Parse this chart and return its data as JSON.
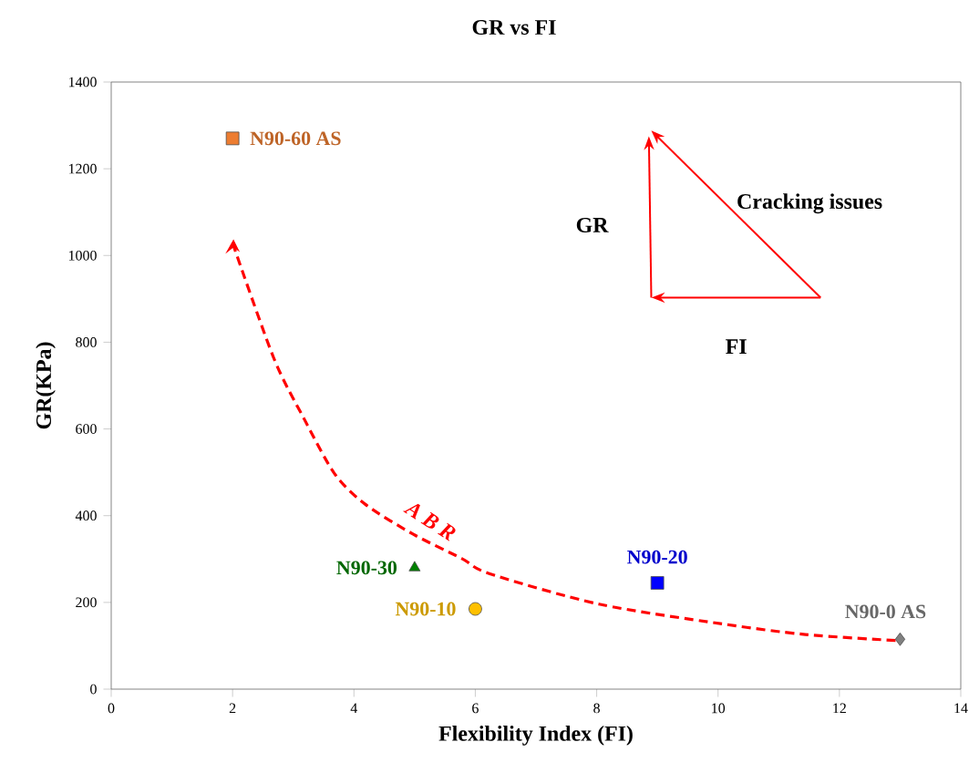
{
  "chart_data": {
    "type": "scatter",
    "title": "GR vs FI",
    "xlabel": "Flexibility Index (FI)",
    "ylabel": "GR(KPa)",
    "xlim": [
      0,
      14
    ],
    "xticks": [
      0,
      2,
      4,
      6,
      8,
      10,
      12,
      14
    ],
    "ylim": [
      0,
      1400
    ],
    "yticks": [
      0,
      200,
      400,
      600,
      800,
      1000,
      1200,
      1400
    ],
    "annotations": [
      "Cracking issues",
      "GR",
      "FI"
    ],
    "series": [
      {
        "name": "N90-60 AS",
        "color": "#ed7d31",
        "marker": "square",
        "x": [
          2
        ],
        "values": [
          1270
        ]
      },
      {
        "name": "N90-30",
        "color": "#008000",
        "marker": "triangle",
        "x": [
          5
        ],
        "values": [
          280
        ]
      },
      {
        "name": "N90-10",
        "color": "#ffc000",
        "marker": "circle",
        "x": [
          6
        ],
        "values": [
          185
        ]
      },
      {
        "name": "N90-20",
        "color": "#0000ff",
        "marker": "square",
        "x": [
          9
        ],
        "values": [
          245
        ]
      },
      {
        "name": "N90-0 AS",
        "color": "#808080",
        "marker": "diamond",
        "x": [
          13
        ],
        "values": [
          115
        ]
      },
      {
        "name": "A B R",
        "type": "line",
        "color": "#ff0000",
        "marker": "none",
        "line_style": "dashed",
        "x": [
          2,
          2.68,
          3.18,
          3.68,
          4.18,
          4.98,
          5.78,
          6.24,
          8.04,
          10.04,
          11.44,
          12.94
        ],
        "values": [
          1029,
          763,
          623,
          497,
          427,
          357,
          301,
          266,
          196,
          151,
          126,
          112
        ]
      }
    ]
  }
}
